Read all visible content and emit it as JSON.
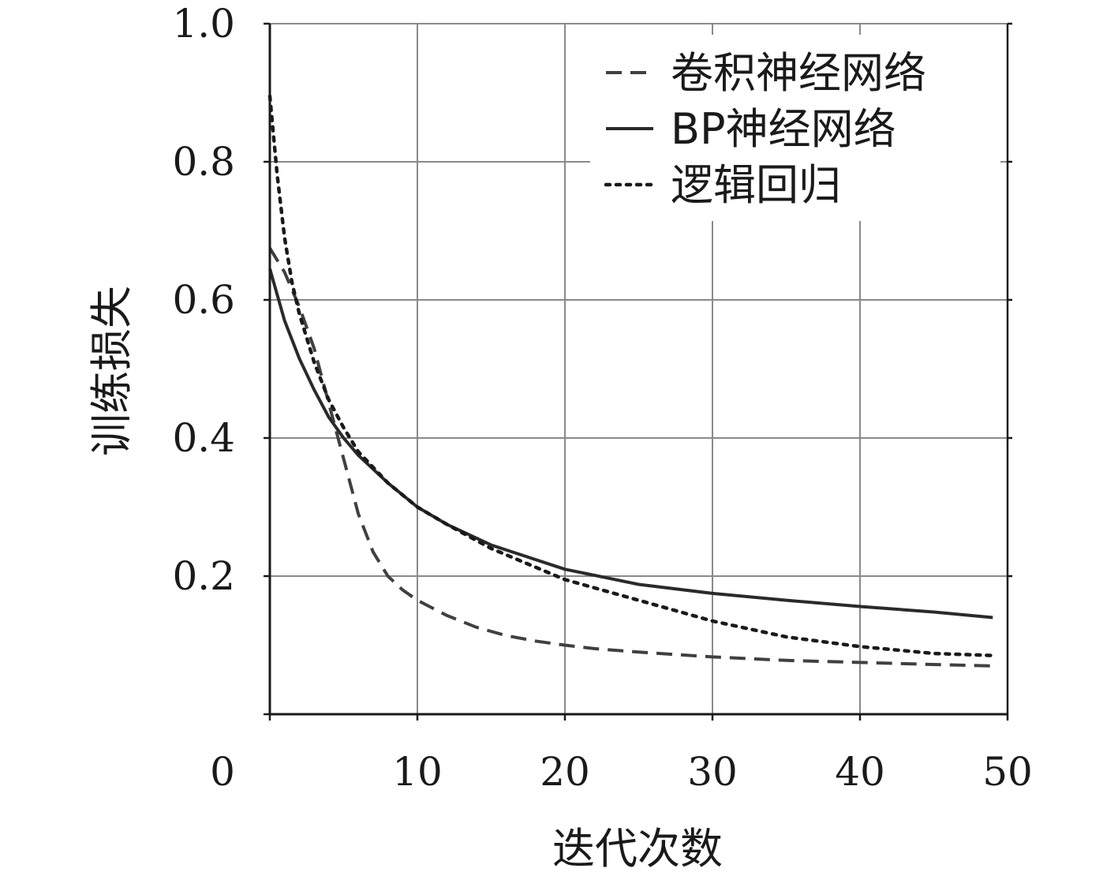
{
  "chart_data": {
    "type": "line",
    "title": "",
    "xlabel": "迭代次数",
    "ylabel": "训练损失",
    "xlim": [
      0,
      50
    ],
    "ylim": [
      0,
      1.0
    ],
    "grid": true,
    "legend_position": "top-right",
    "x_ticks": [
      "0",
      "10",
      "20",
      "30",
      "40",
      "50"
    ],
    "y_ticks": [
      "0.2",
      "0.4",
      "0.6",
      "0.8",
      "1.0"
    ],
    "series": [
      {
        "name": "卷积神经网络",
        "style": "dashed",
        "color": "#404040",
        "x": [
          0,
          1,
          2,
          3,
          4,
          5,
          6,
          7,
          8,
          9,
          10,
          12,
          14,
          16,
          18,
          20,
          22,
          25,
          30,
          35,
          40,
          45,
          49
        ],
        "y": [
          0.675,
          0.64,
          0.59,
          0.53,
          0.45,
          0.37,
          0.29,
          0.235,
          0.2,
          0.18,
          0.165,
          0.143,
          0.126,
          0.114,
          0.106,
          0.1,
          0.095,
          0.09,
          0.083,
          0.078,
          0.075,
          0.072,
          0.07
        ]
      },
      {
        "name": "BP神经网络",
        "style": "solid",
        "color": "#2a2a2a",
        "x": [
          0,
          1,
          2,
          3,
          4,
          5,
          6,
          8,
          10,
          12,
          15,
          20,
          25,
          30,
          35,
          40,
          45,
          49
        ],
        "y": [
          0.645,
          0.57,
          0.515,
          0.47,
          0.43,
          0.4,
          0.375,
          0.335,
          0.3,
          0.275,
          0.245,
          0.21,
          0.188,
          0.175,
          0.165,
          0.156,
          0.148,
          0.14
        ]
      },
      {
        "name": "逻辑回归",
        "style": "dotted",
        "color": "#1a1a1a",
        "x": [
          0,
          0.5,
          1,
          1.5,
          2,
          3,
          4,
          5,
          6,
          8,
          10,
          12,
          15,
          20,
          25,
          30,
          35,
          40,
          45,
          49
        ],
        "y": [
          0.895,
          0.78,
          0.69,
          0.625,
          0.58,
          0.51,
          0.455,
          0.415,
          0.38,
          0.335,
          0.3,
          0.275,
          0.24,
          0.195,
          0.165,
          0.135,
          0.112,
          0.098,
          0.088,
          0.085
        ]
      }
    ]
  }
}
